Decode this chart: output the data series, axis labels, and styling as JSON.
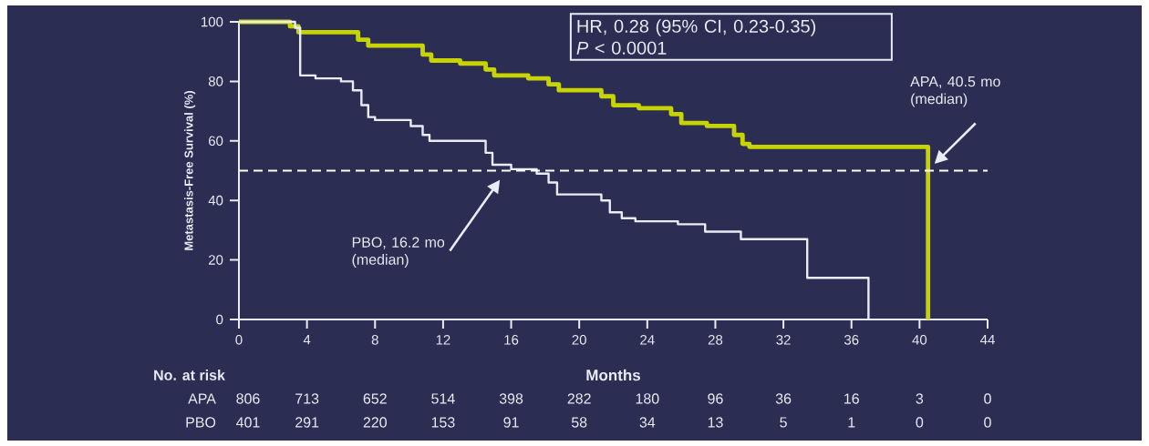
{
  "chart_data": {
    "type": "step",
    "xlabel": "Months",
    "ylabel": "Metastasis-Free Survival (%)",
    "xlim": [
      0,
      44
    ],
    "xticks": [
      0,
      4,
      8,
      12,
      16,
      20,
      24,
      28,
      32,
      36,
      40,
      44
    ],
    "ylim": [
      0,
      100
    ],
    "yticks": [
      0,
      20,
      40,
      60,
      80,
      100
    ],
    "grid": false,
    "series": [
      {
        "color": "#c8d400",
        "x": [
          0,
          3.0,
          3.5,
          7.0,
          7.6,
          10.8,
          11.3,
          13.0,
          14.5,
          15.0,
          17.0,
          18.2,
          18.8,
          21.3,
          22.0,
          23.5,
          25.4,
          26.0,
          27.5,
          29.1,
          29.6,
          30.0,
          40.5
        ],
        "values": [
          100,
          98.5,
          96.5,
          94,
          92,
          89,
          87,
          86,
          84,
          82,
          81,
          79,
          77,
          75,
          72,
          71,
          69,
          66,
          65,
          62,
          59,
          58,
          0
        ]
      },
      {
        "color": "#e8ecf4",
        "x": [
          0,
          3.3,
          3.6,
          4.5,
          6.0,
          6.7,
          7.2,
          7.6,
          8.0,
          10.1,
          10.8,
          11.2,
          14.5,
          14.9,
          16.0,
          17.5,
          18.2,
          18.7,
          21.3,
          21.8,
          22.5,
          23.3,
          25.8,
          27.4,
          29.5,
          33.4,
          37.0
        ],
        "values": [
          100,
          98,
          82,
          81,
          80,
          77,
          72,
          68,
          67,
          65,
          62,
          60,
          56,
          52,
          50.5,
          49,
          46,
          42,
          40,
          36,
          34,
          33,
          32,
          29.5,
          27,
          14,
          0
        ]
      }
    ],
    "ref_lines": [
      {
        "axis": "y",
        "value": 50,
        "color": "#ffffff",
        "line_style": "dashed"
      }
    ],
    "annotations": [
      "HR, 0.28 (95% CI, 0.23-0.35)",
      "*P* < 0.0001",
      "PBO, 16.2 mo (median)",
      "APA, 40.5 mo (median)",
      "No. at risk",
      "APA",
      "806",
      "713",
      "652",
      "514",
      "398",
      "282",
      "180",
      "96",
      "36",
      "16",
      "3",
      "0",
      "PBO",
      "401",
      "291",
      "220",
      "153",
      "91",
      "58",
      "34",
      "13",
      "5",
      "1",
      "0",
      "0"
    ]
  }
}
